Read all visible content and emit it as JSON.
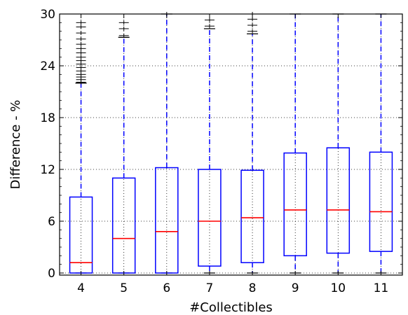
{
  "chart_data": {
    "type": "box",
    "title": "",
    "xlabel": "#Collectibles",
    "ylabel": "Difference - %",
    "ylim": [
      0,
      30
    ],
    "yticks": [
      0,
      6,
      12,
      18,
      24,
      30
    ],
    "grid": true,
    "colors": {
      "box": "#0000ff",
      "median": "#ff0000",
      "flier": "#000000",
      "grid": "#000000"
    },
    "categories": [
      "4",
      "5",
      "6",
      "7",
      "8",
      "9",
      "10",
      "11"
    ],
    "boxes": [
      {
        "category": "4",
        "q1": 0.0,
        "median": 1.2,
        "q3": 8.8,
        "whisker_low": 0.0,
        "whisker_high": 22.0,
        "fliers": [
          22.1,
          22.4,
          22.7,
          23.0,
          23.4,
          23.8,
          24.2,
          24.6,
          25.0,
          25.5,
          26.0,
          26.5,
          27.1,
          27.8,
          28.5,
          29.0
        ]
      },
      {
        "category": "5",
        "q1": 0.0,
        "median": 4.0,
        "q3": 11.0,
        "whisker_low": 0.0,
        "whisker_high": 27.3,
        "fliers": [
          27.5,
          28.3,
          29.0
        ]
      },
      {
        "category": "6",
        "q1": 0.0,
        "median": 4.8,
        "q3": 12.2,
        "whisker_low": 0.0,
        "whisker_high": 30.0,
        "fliers": [
          30.0
        ]
      },
      {
        "category": "7",
        "q1": 0.8,
        "median": 6.0,
        "q3": 12.0,
        "whisker_low": 0.0,
        "whisker_high": 28.3,
        "fliers": [
          28.6,
          29.3
        ]
      },
      {
        "category": "8",
        "q1": 1.2,
        "median": 6.4,
        "q3": 11.9,
        "whisker_low": 0.0,
        "whisker_high": 27.7,
        "fliers": [
          28.0,
          28.7,
          29.4,
          30.0
        ]
      },
      {
        "category": "9",
        "q1": 2.0,
        "median": 7.3,
        "q3": 13.9,
        "whisker_low": 0.0,
        "whisker_high": 30.0,
        "fliers": []
      },
      {
        "category": "10",
        "q1": 2.3,
        "median": 7.3,
        "q3": 14.5,
        "whisker_low": 0.0,
        "whisker_high": 30.0,
        "fliers": []
      },
      {
        "category": "11",
        "q1": 2.5,
        "median": 7.1,
        "q3": 14.0,
        "whisker_low": 0.0,
        "whisker_high": 30.0,
        "fliers": []
      }
    ]
  }
}
